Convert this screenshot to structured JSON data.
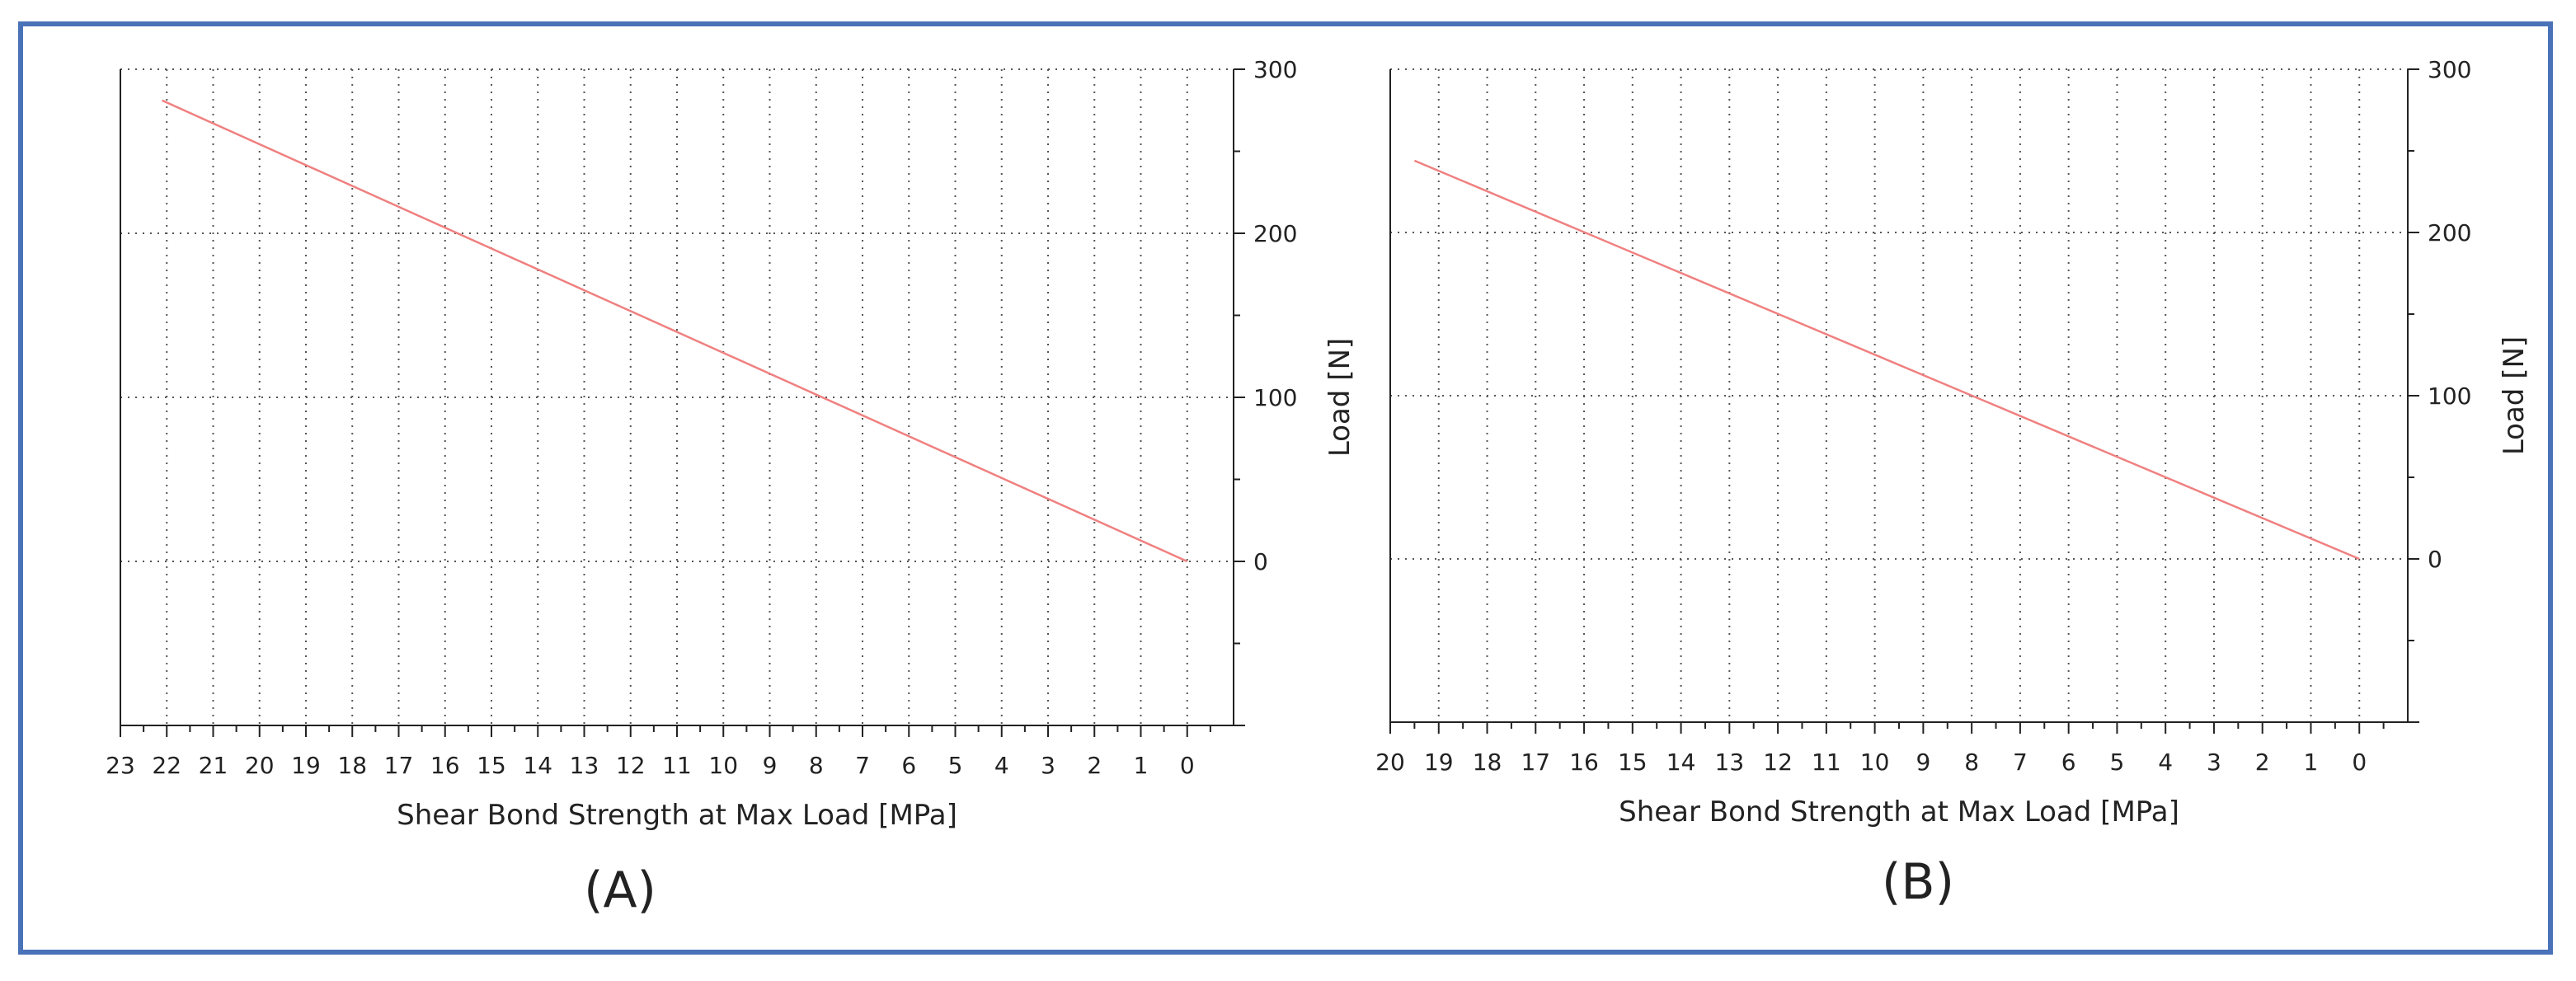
{
  "chart_data": [
    {
      "type": "line",
      "panel_label": "(A)",
      "xlabel": "Shear Bond Strength at Max Load [MPa]",
      "ylabel": "Load [N]",
      "x_reversed": true,
      "xlim": [
        23,
        -1
      ],
      "ylim": [
        -100,
        300
      ],
      "xticks": [
        23,
        22,
        21,
        20,
        19,
        18,
        17,
        16,
        15,
        14,
        13,
        12,
        11,
        10,
        9,
        8,
        7,
        6,
        5,
        4,
        3,
        2,
        1,
        0
      ],
      "xtick_labels": [
        "23",
        "22",
        "21",
        "20",
        "19",
        "18",
        "17",
        "16",
        "15",
        "14",
        "13",
        "12",
        "11",
        "10",
        "9",
        "8",
        "7",
        "6",
        "5",
        "4",
        "3",
        "2",
        "1",
        "0"
      ],
      "yticks_labeled": [
        0,
        100,
        200,
        300
      ],
      "ytick_labels": [
        "0",
        "100",
        "200",
        "300"
      ],
      "y_axis_position": "right",
      "grid": true,
      "series": [
        {
          "color": "#f08080",
          "x": [
            22.1,
            0
          ],
          "y": [
            281,
            0
          ]
        }
      ]
    },
    {
      "type": "line",
      "panel_label": "(B)",
      "xlabel": "Shear Bond Strength at Max Load [MPa]",
      "ylabel": "Load [N]",
      "x_reversed": true,
      "xlim": [
        20,
        -1
      ],
      "ylim": [
        -100,
        300
      ],
      "xticks": [
        20,
        19,
        18,
        17,
        16,
        15,
        14,
        13,
        12,
        11,
        10,
        9,
        8,
        7,
        6,
        5,
        4,
        3,
        2,
        1,
        0
      ],
      "xtick_labels": [
        "20",
        "19",
        "18",
        "17",
        "16",
        "15",
        "14",
        "13",
        "12",
        "11",
        "10",
        "9",
        "8",
        "7",
        "6",
        "5",
        "4",
        "3",
        "2",
        "1",
        "0"
      ],
      "yticks_labeled": [
        0,
        100,
        200,
        300
      ],
      "ytick_labels": [
        "0",
        "100",
        "200",
        "300"
      ],
      "y_axis_position": "right",
      "grid": true,
      "series": [
        {
          "color": "#f08080",
          "x": [
            19.5,
            0
          ],
          "y": [
            244,
            0
          ]
        }
      ]
    }
  ]
}
